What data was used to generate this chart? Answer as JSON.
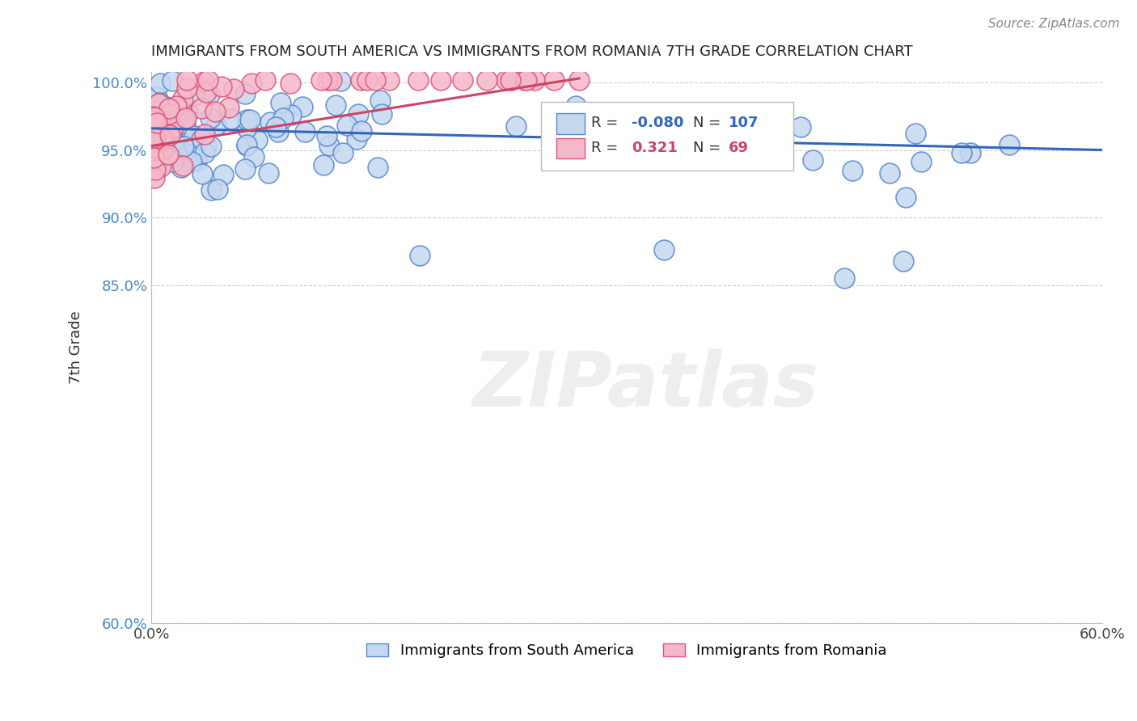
{
  "title": "IMMIGRANTS FROM SOUTH AMERICA VS IMMIGRANTS FROM ROMANIA 7TH GRADE CORRELATION CHART",
  "source": "Source: ZipAtlas.com",
  "ylabel": "7th Grade",
  "blue_R": -0.08,
  "blue_N": 107,
  "pink_R": 0.321,
  "pink_N": 69,
  "blue_color": "#c5d8f0",
  "blue_edge": "#5588cc",
  "pink_color": "#f5b8ca",
  "pink_edge": "#dd5577",
  "blue_line_color": "#3366bb",
  "pink_line_color": "#cc4466",
  "legend_blue_label": "Immigrants from South America",
  "legend_pink_label": "Immigrants from Romania",
  "xmin": 0.0,
  "xmax": 0.6,
  "ymin": 0.6,
  "ymax": 1.008,
  "ytick_vals": [
    1.0,
    0.95,
    0.9,
    0.85,
    0.6
  ],
  "ytick_labels": [
    "100.0%",
    "95.0%",
    "90.0%",
    "85.0%",
    "60.0%"
  ],
  "blue_line_x": [
    0.0,
    0.6
  ],
  "blue_line_y": [
    0.966,
    0.95
  ],
  "pink_line_x": [
    0.0,
    0.27
  ],
  "pink_line_y": [
    0.953,
    1.003
  ],
  "watermark": "ZIPatlas"
}
